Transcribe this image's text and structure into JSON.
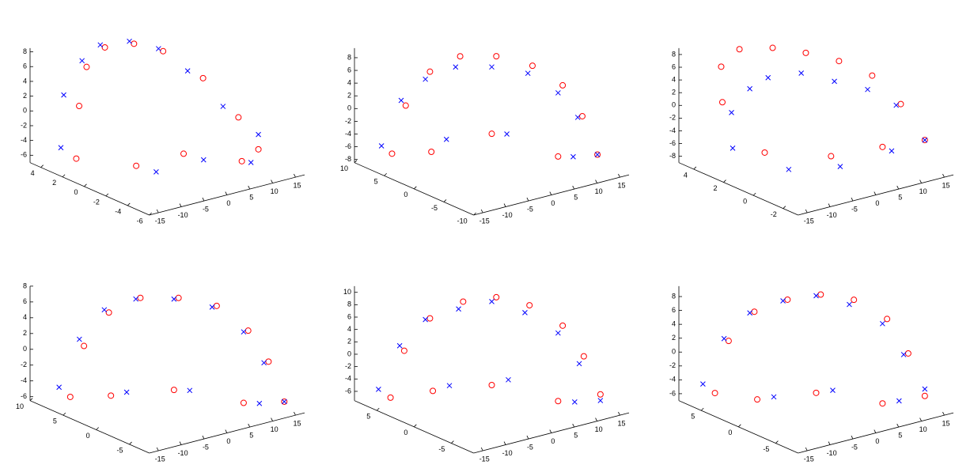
{
  "chart_data": [
    {
      "type": "scatter3d",
      "xlim": [
        -17,
        17
      ],
      "ylim": [
        -6,
        5
      ],
      "zlim": [
        -7,
        8.5
      ],
      "xticks": [
        -15,
        -10,
        -5,
        0,
        5,
        10,
        15
      ],
      "yticks": [
        -6,
        -4,
        -2,
        0,
        2,
        4
      ],
      "zticks": [
        -6,
        -4,
        -2,
        0,
        2,
        4,
        6,
        8
      ],
      "series": [
        {
          "color": "#ff0000",
          "marker": "o",
          "x": [
            -14,
            -11,
            -7,
            -3,
            1,
            5,
            9,
            12,
            14,
            -8,
            0,
            8
          ],
          "y": [
            2,
            3,
            4,
            4,
            3,
            2,
            0,
            -2,
            -3,
            -1,
            -2,
            -4
          ],
          "z": [
            -5,
            1,
            5,
            7,
            7.5,
            6.5,
            3.5,
            -1,
            -5,
            -5,
            -4,
            -5
          ]
        },
        {
          "color": "#0000ff",
          "marker": "x",
          "x": [
            -15,
            -12,
            -8,
            -4,
            0,
            4,
            8,
            11,
            14,
            -6,
            2,
            10
          ],
          "y": [
            3,
            4,
            4,
            4,
            3,
            2,
            1,
            -1,
            -3,
            -2,
            -3,
            -4
          ],
          "z": [
            -4,
            2,
            6,
            7.5,
            8,
            7,
            4,
            0,
            -3,
            -5.5,
            -4.5,
            -5.5
          ]
        }
      ]
    },
    {
      "type": "scatter3d",
      "xlim": [
        -17,
        17
      ],
      "ylim": [
        -10,
        10
      ],
      "zlim": [
        -8.5,
        9.5
      ],
      "xticks": [
        -15,
        -10,
        -5,
        0,
        5,
        10,
        15
      ],
      "yticks": [
        -10,
        -5,
        0,
        5,
        10
      ],
      "zticks": [
        -8,
        -6,
        -4,
        -2,
        0,
        2,
        4,
        6,
        8
      ],
      "series": [
        {
          "color": "#ff0000",
          "marker": "o",
          "x": [
            -14,
            -11,
            -7,
            -3,
            1,
            5,
            9,
            12,
            14,
            -8,
            0,
            8
          ],
          "y": [
            6,
            6,
            5,
            3,
            0,
            -3,
            -5,
            -6,
            -7,
            4,
            0,
            -5
          ],
          "z": [
            -6,
            1,
            6,
            8.5,
            9,
            8,
            5,
            0,
            -6,
            -6,
            -3,
            -6
          ]
        },
        {
          "color": "#0000ff",
          "marker": "x",
          "x": [
            -15,
            -12,
            -8,
            -4,
            0,
            4,
            8,
            11,
            14,
            -6,
            2,
            10
          ],
          "y": [
            7,
            6,
            5,
            3,
            0,
            -3,
            -5,
            -6,
            -7,
            3,
            -1,
            -6
          ],
          "z": [
            -5,
            2,
            5,
            7,
            7.5,
            7,
            4,
            0,
            -6,
            -4,
            -3,
            -6
          ]
        }
      ]
    },
    {
      "type": "scatter3d",
      "xlim": [
        -17,
        17
      ],
      "ylim": [
        -3,
        5
      ],
      "zlim": [
        -9,
        9
      ],
      "xticks": [
        -15,
        -10,
        -5,
        0,
        5,
        10,
        15
      ],
      "yticks": [
        -2,
        0,
        2,
        4
      ],
      "zticks": [
        -8,
        -6,
        -4,
        -2,
        0,
        2,
        4,
        6,
        8
      ],
      "series": [
        {
          "color": "#ff0000",
          "marker": "o",
          "x": [
            -14,
            -11,
            -7,
            -3,
            1,
            5,
            9,
            12,
            14,
            -8,
            0,
            8
          ],
          "y": [
            3,
            4,
            4,
            3,
            2,
            1,
            0,
            -1,
            -2,
            2,
            0,
            -1
          ],
          "z": [
            2,
            6,
            8,
            8.5,
            8,
            7,
            5,
            1,
            -4,
            -6,
            -6,
            -5
          ]
        },
        {
          "color": "#0000ff",
          "marker": "x",
          "x": [
            -15,
            -12,
            -8,
            -4,
            0,
            4,
            8,
            11,
            14,
            -6,
            2,
            10
          ],
          "y": [
            2,
            3,
            3,
            3,
            2,
            1,
            0,
            -1,
            -2,
            1,
            0,
            -1
          ],
          "z": [
            -4,
            0,
            3,
            4,
            5,
            4,
            3,
            1,
            -4,
            -8,
            -8,
            -6
          ]
        }
      ]
    },
    {
      "type": "scatter3d",
      "xlim": [
        -17,
        17
      ],
      "ylim": [
        -8,
        10
      ],
      "zlim": [
        -6.5,
        8
      ],
      "xticks": [
        -15,
        -10,
        -5,
        0,
        5,
        10,
        15
      ],
      "yticks": [
        -5,
        0,
        5,
        10
      ],
      "zticks": [
        -6,
        -4,
        -2,
        0,
        2,
        4,
        6,
        8
      ],
      "series": [
        {
          "color": "#ff0000",
          "marker": "o",
          "x": [
            -14,
            -11,
            -7,
            -3,
            1,
            5,
            9,
            12,
            14,
            -8,
            0,
            8
          ],
          "y": [
            6,
            6,
            5,
            3,
            0,
            -3,
            -5,
            -6,
            -7,
            4,
            0,
            -5
          ],
          "z": [
            -5,
            1,
            5,
            7,
            7.5,
            7,
            4,
            0,
            -5,
            -5,
            -4,
            -5
          ]
        },
        {
          "color": "#0000ff",
          "marker": "x",
          "x": [
            -15,
            -12,
            -8,
            -4,
            0,
            4,
            8,
            11,
            14,
            -6,
            2,
            10
          ],
          "y": [
            7,
            6,
            5,
            3,
            0,
            -3,
            -5,
            -6,
            -7,
            3,
            -1,
            -6
          ],
          "z": [
            -4,
            2,
            5.5,
            7,
            7.5,
            7,
            4,
            0,
            -5,
            -4.5,
            -4,
            -5
          ]
        }
      ]
    },
    {
      "type": "scatter3d",
      "xlim": [
        -17,
        17
      ],
      "ylim": [
        -8,
        8
      ],
      "zlim": [
        -7.5,
        11
      ],
      "xticks": [
        -15,
        -10,
        -5,
        0,
        5,
        10,
        15
      ],
      "yticks": [
        -5,
        0,
        5
      ],
      "zticks": [
        -6,
        -4,
        -2,
        0,
        2,
        4,
        6,
        8,
        10
      ],
      "series": [
        {
          "color": "#ff0000",
          "marker": "o",
          "x": [
            -14,
            -11,
            -7,
            -3,
            1,
            5,
            9,
            12,
            14,
            -8,
            0,
            8
          ],
          "y": [
            5,
            5,
            4,
            2,
            0,
            -2,
            -4,
            -5,
            -6,
            3,
            0,
            -4
          ],
          "z": [
            -6,
            1,
            6,
            9,
            10,
            9,
            6,
            1,
            -5,
            -5,
            -4,
            -6
          ]
        },
        {
          "color": "#0000ff",
          "marker": "x",
          "x": [
            -15,
            -12,
            -8,
            -4,
            0,
            4,
            8,
            11,
            14,
            -6,
            2,
            10
          ],
          "y": [
            6,
            5,
            4,
            2,
            0,
            -2,
            -4,
            -5,
            -6,
            2,
            -1,
            -5
          ],
          "z": [
            -5,
            2,
            6,
            8,
            9.5,
            8,
            5,
            0,
            -6,
            -4,
            -3,
            -6
          ]
        }
      ]
    },
    {
      "type": "scatter3d",
      "xlim": [
        -17,
        17
      ],
      "ylim": [
        -8,
        8
      ],
      "zlim": [
        -7,
        9.5
      ],
      "xticks": [
        -15,
        -10,
        -5,
        0,
        5,
        10,
        15
      ],
      "yticks": [
        -5,
        0,
        5
      ],
      "zticks": [
        -6,
        -4,
        -2,
        0,
        2,
        4,
        6,
        8
      ],
      "series": [
        {
          "color": "#ff0000",
          "marker": "o",
          "x": [
            -14,
            -11,
            -7,
            -3,
            1,
            5,
            9,
            12,
            14,
            -8,
            0,
            8
          ],
          "y": [
            5,
            5,
            4,
            2,
            0,
            -2,
            -4,
            -5,
            -6,
            3,
            0,
            -4
          ],
          "z": [
            -5,
            2,
            6,
            8,
            9,
            8.5,
            6,
            1,
            -5,
            -6,
            -5,
            -6
          ]
        },
        {
          "color": "#0000ff",
          "marker": "x",
          "x": [
            -15,
            -12,
            -8,
            -4,
            0,
            4,
            8,
            11,
            14,
            -6,
            2,
            10
          ],
          "y": [
            6,
            5,
            4,
            2,
            0,
            -2,
            -4,
            -5,
            -6,
            2,
            -1,
            -5
          ],
          "z": [
            -4,
            2.5,
            6,
            8,
            9,
            8,
            5.5,
            1,
            -4,
            -5.5,
            -4.5,
            -5.5
          ]
        }
      ]
    }
  ]
}
